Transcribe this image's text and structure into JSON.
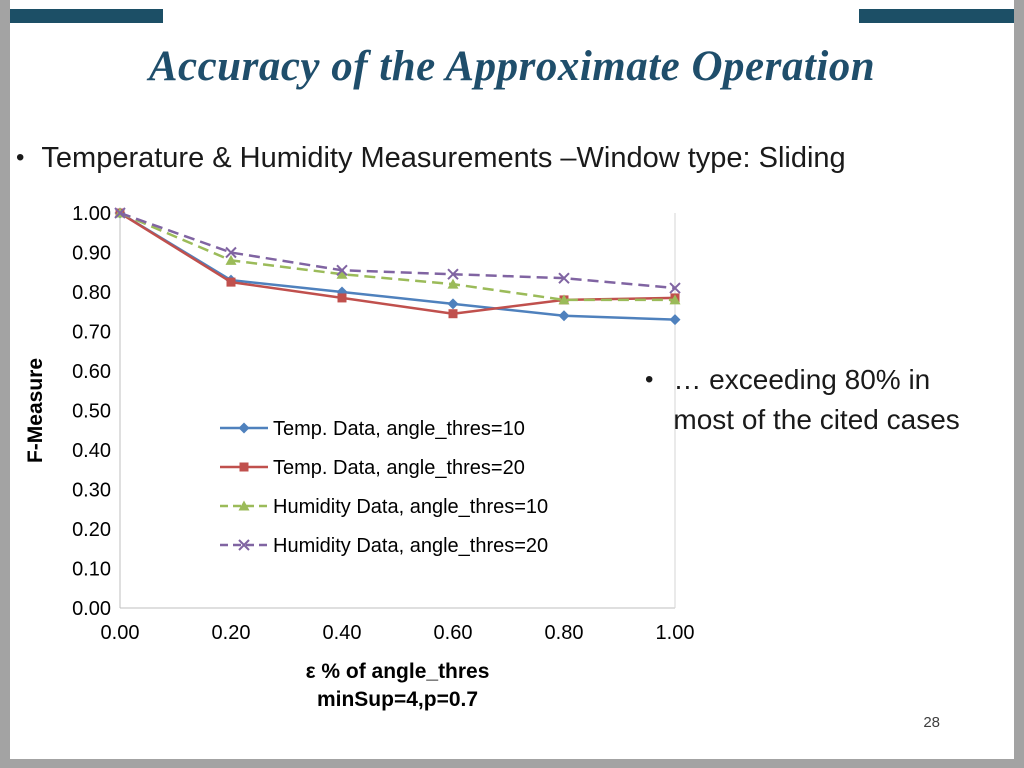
{
  "slide": {
    "title": "Accuracy of the Approximate Operation",
    "bullet_char": "•",
    "bullets": [
      "Temperature & Humidity Measurements –Window type: Sliding"
    ],
    "side_note": {
      "line1": "… exceeding 80% in",
      "line2": "most of the cited cases"
    },
    "page_number": "28"
  },
  "theme": {
    "title_color": "#1F4E6B",
    "corner_bar_color": "#1C4F66",
    "frame_color": "#A3A3A3"
  },
  "chart_data": {
    "type": "line",
    "title": "",
    "x": [
      0.0,
      0.2,
      0.4,
      0.6,
      0.8,
      1.0
    ],
    "xlim": [
      0.0,
      1.0
    ],
    "ylim": [
      0.0,
      1.0
    ],
    "xticks": [
      "0.00",
      "0.20",
      "0.40",
      "0.60",
      "0.80",
      "1.00"
    ],
    "yticks": [
      "0.00",
      "0.10",
      "0.20",
      "0.30",
      "0.40",
      "0.50",
      "0.60",
      "0.70",
      "0.80",
      "0.90",
      "1.00"
    ],
    "xlabel": "ε % of angle_thres",
    "xlabel_line2": "minSup=4,p=0.7",
    "ylabel": "F-Measure",
    "grid": false,
    "legend_position": "inside-center-left",
    "series": [
      {
        "name": "Temp. Data, angle_thres=10",
        "color": "#4F81BD",
        "marker": "diamond",
        "line_style": "solid",
        "values": [
          1.0,
          0.83,
          0.8,
          0.77,
          0.74,
          0.73
        ]
      },
      {
        "name": "Temp. Data, angle_thres=20",
        "color": "#C0504D",
        "marker": "square",
        "line_style": "solid",
        "values": [
          1.0,
          0.825,
          0.785,
          0.745,
          0.78,
          0.785
        ]
      },
      {
        "name": "Humidity Data, angle_thres=10",
        "color": "#9BBB59",
        "marker": "triangle",
        "line_style": "dashed",
        "values": [
          1.0,
          0.88,
          0.845,
          0.82,
          0.78,
          0.78
        ]
      },
      {
        "name": "Humidity Data, angle_thres=20",
        "color": "#8064A2",
        "marker": "x",
        "line_style": "dashed",
        "values": [
          1.0,
          0.9,
          0.855,
          0.845,
          0.835,
          0.81
        ]
      }
    ]
  }
}
